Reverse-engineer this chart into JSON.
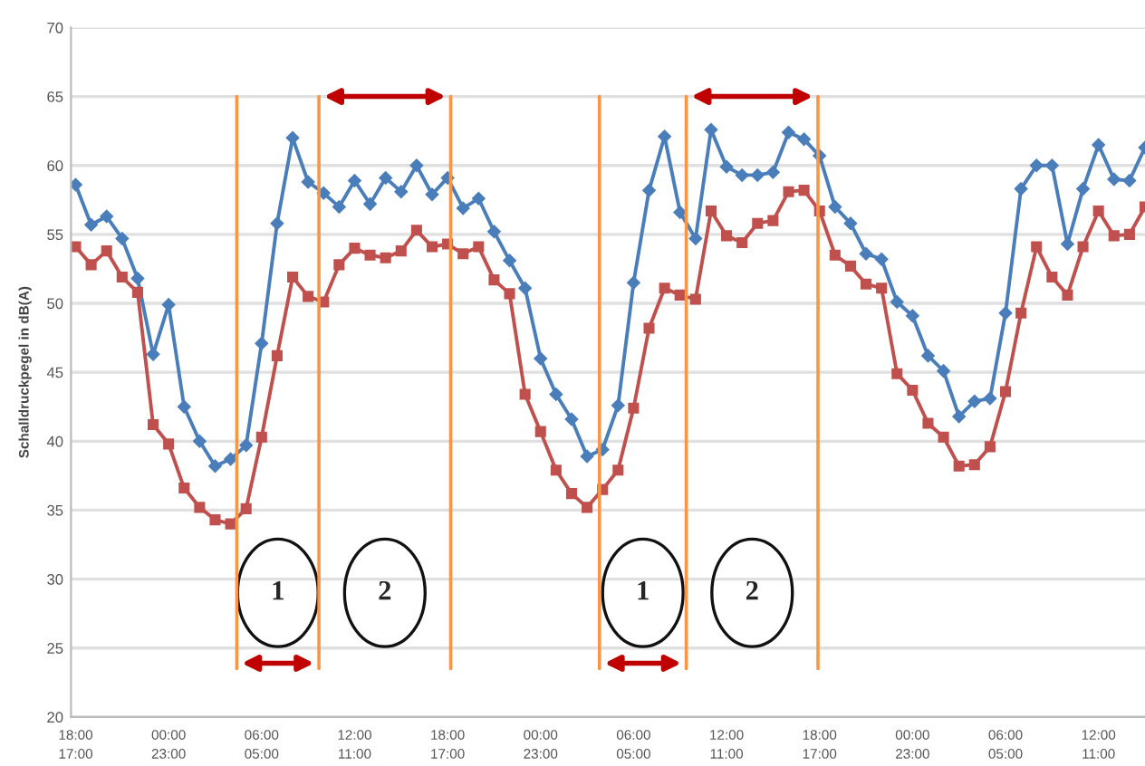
{
  "chart_data": {
    "type": "line",
    "ylabel": "Schalldruckpegel in dB(A)",
    "categories": [
      "18:00\n17:00",
      null,
      null,
      null,
      null,
      null,
      "00:00\n23:00",
      null,
      null,
      null,
      null,
      null,
      "06:00\n05:00",
      null,
      null,
      null,
      null,
      null,
      "12:00\n11:00",
      null,
      null,
      null,
      null,
      null,
      "18:00\n17:00",
      null,
      null,
      null,
      null,
      null,
      "00:00\n23:00",
      null,
      null,
      null,
      null,
      null,
      "06:00\n05:00",
      null,
      null,
      null,
      null,
      null,
      "12:00\n11:00",
      null,
      null,
      null,
      null,
      null,
      "18:00\n17:00",
      null,
      null,
      null,
      null,
      null,
      "00:00\n23:00",
      null,
      null,
      null,
      null,
      null,
      "06:00\n05:00",
      null,
      null,
      null,
      null,
      null,
      "12:00\n11:00",
      null,
      null,
      null
    ],
    "series": [
      {
        "color": "#4a7ebb",
        "marker": "diamond",
        "values": [
          58.6,
          55.7,
          56.3,
          54.7,
          51.8,
          46.3,
          49.9,
          42.5,
          40.0,
          38.2,
          38.7,
          39.7,
          47.1,
          55.8,
          62.0,
          58.8,
          58.0,
          57.0,
          58.9,
          57.2,
          59.1,
          58.1,
          60.0,
          57.9,
          59.1,
          56.9,
          57.6,
          55.2,
          53.1,
          51.1,
          46.0,
          43.4,
          41.6,
          38.9,
          39.4,
          42.6,
          51.5,
          58.2,
          62.1,
          56.6,
          54.7,
          62.6,
          59.9,
          59.3,
          59.3,
          59.5,
          62.4,
          61.9,
          60.7,
          57.0,
          55.8,
          53.6,
          53.2,
          50.1,
          49.1,
          46.2,
          45.1,
          41.8,
          42.9,
          43.1,
          49.3,
          58.3,
          60.0,
          60.0,
          54.3,
          58.3,
          61.5,
          59.0,
          58.9,
          61.3
        ]
      },
      {
        "color": "#c0504d",
        "marker": "square",
        "values": [
          54.1,
          52.8,
          53.8,
          51.9,
          50.8,
          41.2,
          39.8,
          36.6,
          35.2,
          34.3,
          34.0,
          35.1,
          40.3,
          46.2,
          51.9,
          50.5,
          50.1,
          52.8,
          54.0,
          53.5,
          53.3,
          53.8,
          55.3,
          54.1,
          54.3,
          53.6,
          54.1,
          51.7,
          50.7,
          43.4,
          40.7,
          37.9,
          36.2,
          35.2,
          36.5,
          37.9,
          42.4,
          48.2,
          51.1,
          50.6,
          50.3,
          56.7,
          54.9,
          54.4,
          55.8,
          56.0,
          58.1,
          58.2,
          56.7,
          53.5,
          52.7,
          51.4,
          51.1,
          44.9,
          43.7,
          41.3,
          40.3,
          38.2,
          38.3,
          39.6,
          43.6,
          49.3,
          54.1,
          51.9,
          50.6,
          54.1,
          56.7,
          54.9,
          55.0,
          57.0
        ]
      }
    ],
    "ylim": [
      20,
      70
    ],
    "yticks": [
      20,
      25,
      30,
      35,
      40,
      45,
      50,
      55,
      60,
      65,
      70
    ],
    "grid": "y",
    "legend": false,
    "annotations": [
      "1",
      "2",
      "1",
      "2"
    ]
  }
}
